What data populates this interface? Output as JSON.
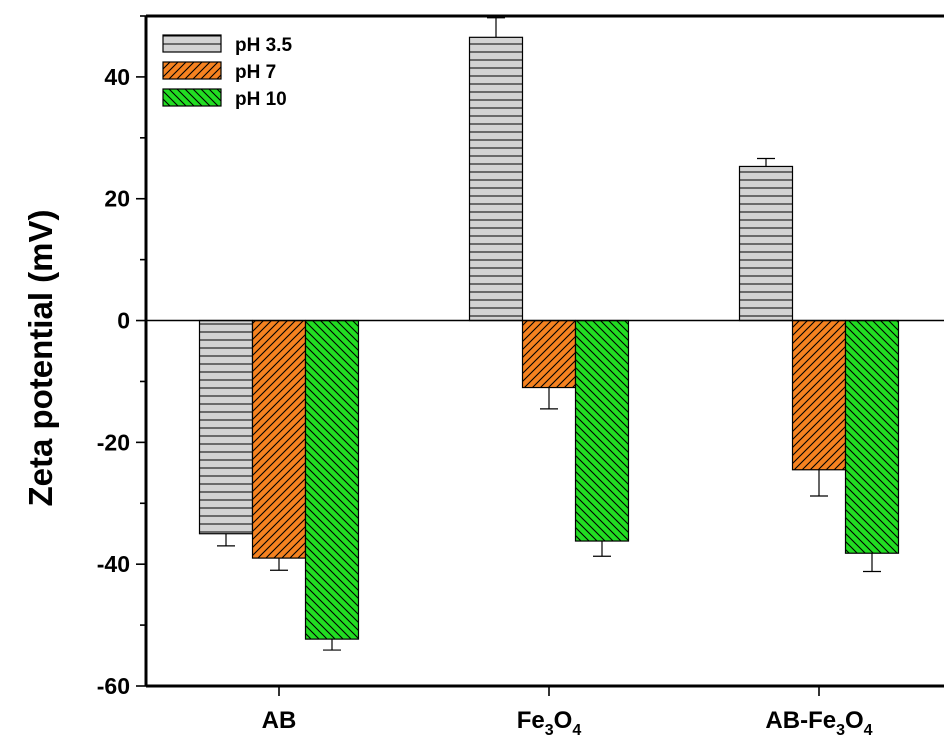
{
  "chart_data": {
    "type": "bar",
    "categories": [
      "AB",
      "Fe3O4",
      "AB-Fe3O4"
    ],
    "category_labels": [
      {
        "parts": [
          {
            "t": "AB",
            "sub": false
          }
        ]
      },
      {
        "parts": [
          {
            "t": "Fe",
            "sub": false
          },
          {
            "t": "3",
            "sub": true
          },
          {
            "t": "O",
            "sub": false
          },
          {
            "t": "4",
            "sub": true
          }
        ]
      },
      {
        "parts": [
          {
            "t": "AB-Fe",
            "sub": false
          },
          {
            "t": "3",
            "sub": true
          },
          {
            "t": "O",
            "sub": false
          },
          {
            "t": "4",
            "sub": true
          }
        ]
      }
    ],
    "series": [
      {
        "name": "pH 3.5",
        "values": [
          -35,
          46.5,
          25.3
        ],
        "errors": [
          2,
          3.2,
          1.3
        ],
        "color": "#d3d3d3",
        "pattern": "horizontal"
      },
      {
        "name": "pH 7",
        "values": [
          -39,
          -11,
          -24.5
        ],
        "errors": [
          2,
          3.5,
          4.3
        ],
        "color": "#f58220",
        "pattern": "diagonal-up"
      },
      {
        "name": "pH 10",
        "values": [
          -52.3,
          -36.2,
          -38.2
        ],
        "errors": [
          1.8,
          2.5,
          3
        ],
        "color": "#22dd22",
        "pattern": "diagonal-down"
      }
    ],
    "ylabel": "Zeta potential (mV)",
    "xlabel": "",
    "ylim": [
      -60,
      50
    ],
    "yticks": [
      -60,
      -40,
      -20,
      0,
      20,
      40
    ],
    "minor_ytick_step": 10,
    "legend_position": "top-left",
    "grid": false
  }
}
